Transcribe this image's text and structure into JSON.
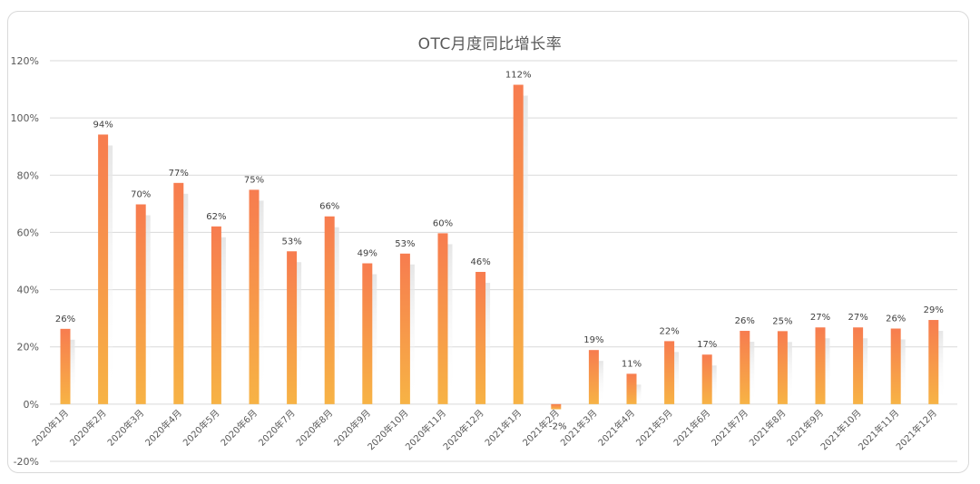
{
  "chart_data": {
    "type": "bar",
    "title": "OTC月度同比增长率",
    "xlabel": "",
    "ylabel": "",
    "ylim": [
      -20,
      120
    ],
    "yticks": [
      "-20%",
      "0%",
      "20%",
      "40%",
      "60%",
      "80%",
      "100%",
      "120%"
    ],
    "grid": true,
    "legend": "none",
    "categories": [
      "2020年1月",
      "2020年2月",
      "2020年3月",
      "2020年4月",
      "2020年5月",
      "2020年6月",
      "2020年7月",
      "2020年8月",
      "2020年9月",
      "2020年10月",
      "2020年11月",
      "2020年12月",
      "2021年1月",
      "2021年2月",
      "2021年3月",
      "2021年4月",
      "2021年5月",
      "2021年6月",
      "2021年7月",
      "2021年8月",
      "2021年9月",
      "2021年10月",
      "2021年11月",
      "2021年12月"
    ],
    "values": [
      26.3,
      94.2,
      69.8,
      77.3,
      62.1,
      74.9,
      53.4,
      65.6,
      49.2,
      52.6,
      59.7,
      46.2,
      111.6,
      -1.8,
      18.9,
      10.6,
      22.0,
      17.3,
      25.6,
      25.5,
      26.8,
      26.8,
      26.4,
      29.4
    ],
    "data_labels": [
      "26%",
      "94%",
      "70%",
      "77%",
      "62%",
      "75%",
      "53%",
      "66%",
      "49%",
      "53%",
      "60%",
      "46%",
      "112%",
      "-2%",
      "19%",
      "11%",
      "22%",
      "17%",
      "26%",
      "25%",
      "27%",
      "27%",
      "26%",
      "29%"
    ],
    "colors": {
      "bar_top": "#f77c4f",
      "bar_bottom": "#f7b345",
      "grid": "#d9d9d9",
      "text": "#595959"
    }
  }
}
